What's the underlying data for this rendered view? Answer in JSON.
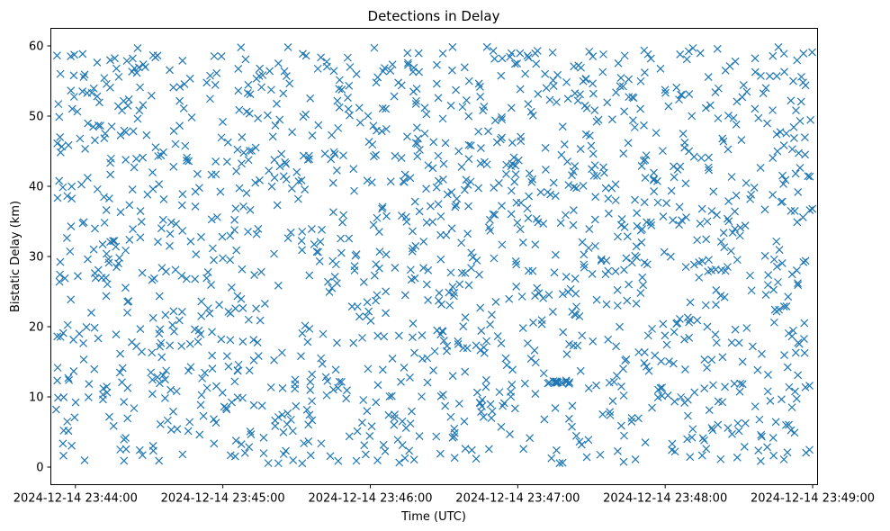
{
  "chart_data": {
    "type": "scatter",
    "title": "Detections in Delay",
    "xlabel": "Time (UTC)",
    "ylabel": "Bistatic Delay (km)",
    "marker": "x",
    "color": "#1f77b4",
    "grid": false,
    "xlim": [
      "2024-12-14 23:43:50",
      "2024-12-14 23:49:02"
    ],
    "ylim": [
      -2.5,
      62.5
    ],
    "xticks": [
      "2024-12-14 23:44:00",
      "2024-12-14 23:45:00",
      "2024-12-14 23:46:00",
      "2024-12-14 23:47:00",
      "2024-12-14 23:48:00",
      "2024-12-14 23:49:00"
    ],
    "yticks": [
      0,
      10,
      20,
      30,
      40,
      50,
      60
    ],
    "time_range": [
      "2024-12-14 23:43:52",
      "2024-12-14 23:49:00"
    ],
    "delay_range": [
      0.5,
      60
    ],
    "point_count": 1500,
    "cluster": {
      "time": "2024-12-14 23:47:17",
      "delay": 12.1,
      "time_spread_s": 10,
      "delay_spread": 0.5
    }
  }
}
